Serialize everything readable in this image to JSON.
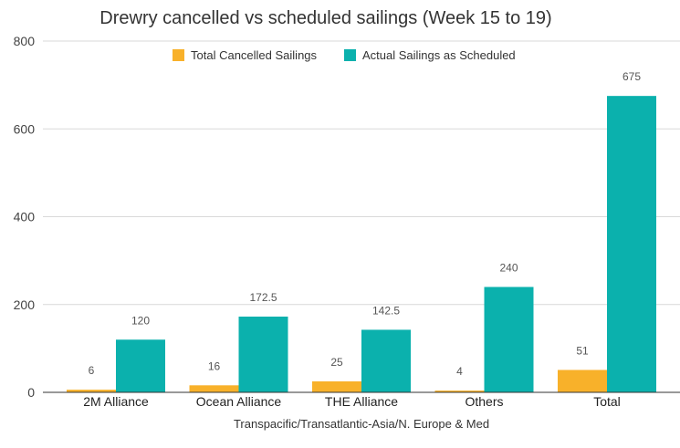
{
  "chart_data": {
    "type": "bar",
    "title": "Drewry cancelled vs scheduled sailings (Week 15 to 19)",
    "xlabel": "Transpacific/Transatlantic-Asia/N. Europe & Med",
    "ylabel": "",
    "ylim": [
      0,
      800
    ],
    "yticks": [
      0,
      200,
      400,
      600,
      800
    ],
    "grid": true,
    "legend_position": "top-center",
    "categories": [
      "2M Alliance",
      "Ocean Alliance",
      "THE Alliance",
      "Others",
      "Total"
    ],
    "series": [
      {
        "name": "Total Cancelled Sailings",
        "color": "#F8B12A",
        "values": [
          6,
          16,
          25,
          4,
          51
        ],
        "labels": [
          "6",
          "16",
          "25",
          "4",
          "51"
        ]
      },
      {
        "name": "Actual Sailings as Scheduled",
        "color": "#0BB1AD",
        "values": [
          120,
          172.5,
          142.5,
          240,
          675
        ],
        "labels": [
          "120",
          "172.5",
          "142.5",
          "240",
          "675"
        ]
      }
    ]
  }
}
